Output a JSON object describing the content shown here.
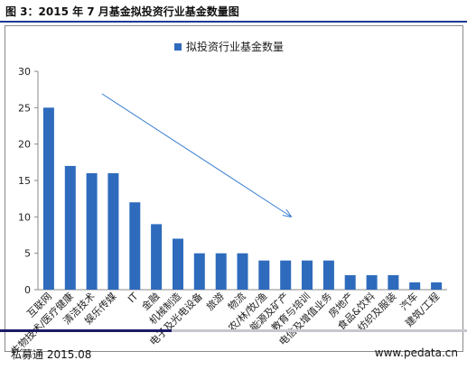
{
  "figure": {
    "title": "图 3：2015 年 7 月基金拟投资行业基金数量图",
    "source_left": "私募通 2015.08",
    "source_right": "www.pedata.cn"
  },
  "colors": {
    "bar": "#2e6bbd",
    "trend_arrow": "#3a7fd0",
    "rule_dark": "#1a1a66",
    "rule_light": "#c7c7cf"
  },
  "chart_data": {
    "type": "bar",
    "legend": "拟投资行业基金数量",
    "legend_position": "top-center",
    "categories": [
      "互联网",
      "生物技术/医疗健康",
      "清洁技术",
      "娱乐传媒",
      "IT",
      "金融",
      "机械制造",
      "电子及光电设备",
      "旅游",
      "物流",
      "农/林/牧/渔",
      "能源及矿产",
      "教育与培训",
      "电信及增值业务",
      "房地产",
      "食品&饮料",
      "纺织及服装",
      "汽车",
      "建筑/工程"
    ],
    "values": [
      25,
      17,
      16,
      16,
      12,
      9,
      7,
      5,
      5,
      5,
      4,
      4,
      4,
      4,
      2,
      2,
      2,
      1,
      1
    ],
    "ylim": [
      0,
      30
    ],
    "yticks": [
      0,
      5,
      10,
      15,
      20,
      25,
      30
    ],
    "grid": false,
    "annotation": "downward trend arrow"
  }
}
